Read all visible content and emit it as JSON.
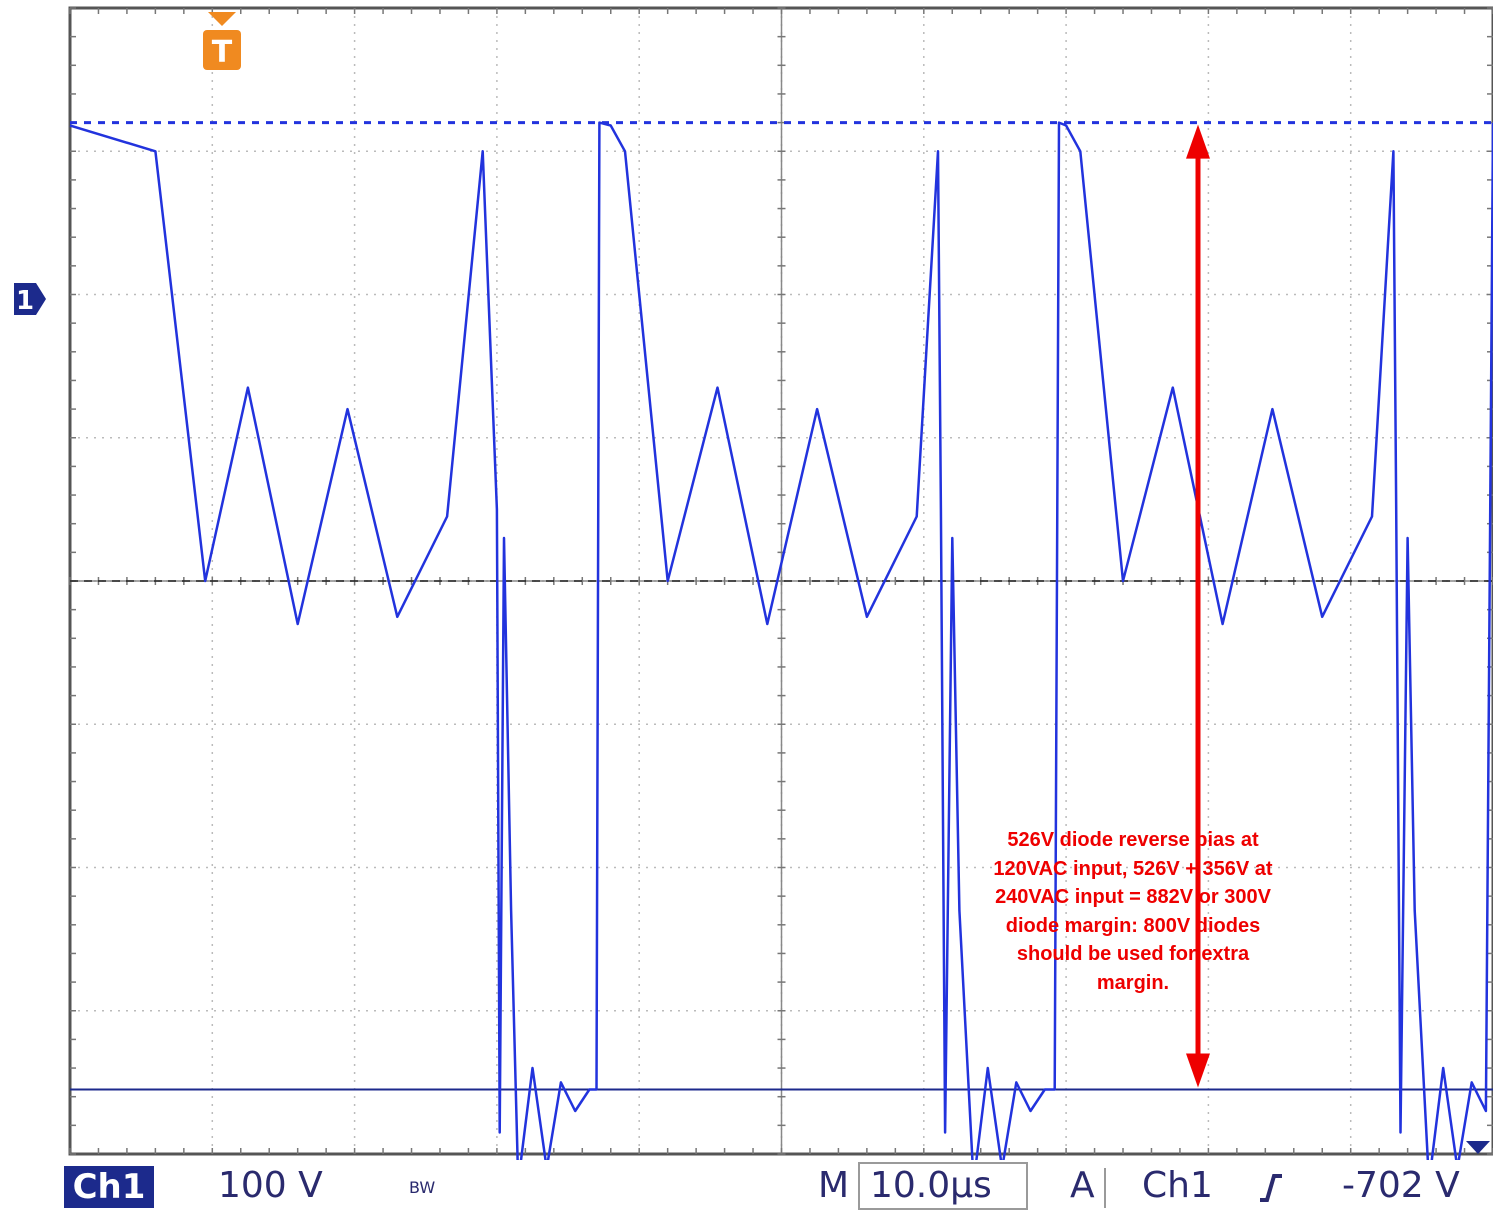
{
  "status": {
    "channel_label": "Ch1",
    "volts_per_div": "100 V",
    "bandwidth_icon": "bandwidth-limit-icon",
    "bandwidth_text": "BW",
    "timebase_prefix": "M",
    "time_per_div": "10.0µs",
    "trigger_prefix": "A",
    "trigger_source": "Ch1",
    "trigger_slope_icon": "rising-edge-icon",
    "trigger_level": "-702 V"
  },
  "markers": {
    "channel_marker": "1",
    "trigger_marker": "T"
  },
  "annotation": {
    "lines": [
      "526V diode reverse bias at",
      "120VAC input, 526V + 356V at",
      "240VAC input = 882V or 300V",
      "diode margin:  800V diodes",
      "should be used for extra",
      "margin."
    ]
  },
  "colors": {
    "trace": "#2233dd",
    "arrow": "#ee0000",
    "annotation": "#ee0000",
    "trigger_marker": "#f08a20",
    "channel_badge": "#1c2a8c"
  },
  "chart_data": {
    "type": "line",
    "divisions": {
      "x": 10,
      "y": 8
    },
    "x_unit_per_div": "10.0µs",
    "y_unit_per_div": "100 V",
    "grid": true,
    "series": [
      {
        "points_x_div": [
          0,
          0.6,
          0.95,
          1.25,
          1.6,
          1.95,
          2.3,
          2.65,
          2.9,
          3.0,
          3.02,
          3.05,
          3.1,
          3.15,
          3.25,
          3.35,
          3.45,
          3.55,
          3.65,
          3.7,
          3.72,
          3.8,
          3.9,
          4.2,
          4.55,
          4.9,
          5.25,
          5.6,
          5.95,
          6.1,
          6.12,
          6.15,
          6.2,
          6.25,
          6.35,
          6.45,
          6.55,
          6.65,
          6.75,
          6.85,
          6.92,
          6.95,
          7.0,
          7.1,
          7.4,
          7.75,
          8.1,
          8.45,
          8.8,
          9.15,
          9.3,
          9.32,
          9.35,
          9.4,
          9.45,
          9.55,
          9.65,
          9.75,
          9.85,
          9.95,
          10.0
        ],
        "values_div": [
          3.18,
          3.0,
          0.0,
          1.35,
          -0.3,
          1.2,
          -0.25,
          0.45,
          3.0,
          0.5,
          -3.85,
          0.3,
          -2.3,
          -4.2,
          -3.4,
          -4.1,
          -3.5,
          -3.7,
          -3.55,
          -3.55,
          3.2,
          3.18,
          3.0,
          0.0,
          1.35,
          -0.3,
          1.2,
          -0.25,
          0.45,
          3.0,
          0.5,
          -3.85,
          0.3,
          -2.3,
          -4.2,
          -3.4,
          -4.1,
          -3.5,
          -3.7,
          -3.55,
          -3.55,
          3.2,
          3.18,
          3.0,
          0.0,
          1.35,
          -0.3,
          1.2,
          -0.25,
          0.45,
          3.0,
          0.5,
          -3.85,
          0.3,
          -2.3,
          -4.2,
          -3.4,
          -4.1,
          -3.5,
          -3.7,
          3.2
        ]
      }
    ],
    "reference_levels_div": {
      "upper": 3.2,
      "ground": 0.0,
      "lower": -3.55
    },
    "arrow_span_div": [
      3.2,
      -3.55
    ]
  }
}
